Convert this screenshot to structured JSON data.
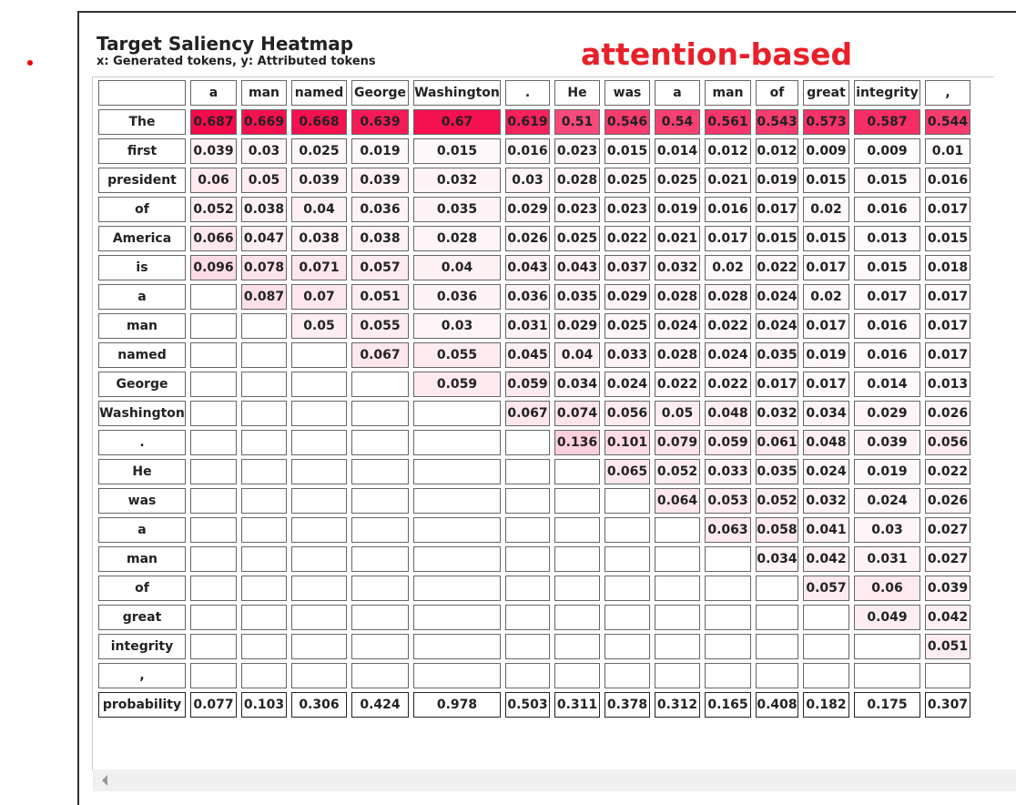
{
  "title": "Target Saliency Heatmap",
  "subtitle": "x: Generated tokens, y: Attributed tokens",
  "annotation": "attention-based",
  "color": "#f50a4b",
  "table": {
    "columns": [
      "a",
      "man",
      "named",
      "George",
      "Washington",
      ".",
      "He",
      "was",
      "a",
      "man",
      "of",
      "great",
      "integrity",
      ","
    ],
    "rows": [
      {
        "label": "The",
        "values": [
          0.687,
          0.669,
          0.668,
          0.639,
          0.67,
          0.619,
          0.51,
          0.546,
          0.54,
          0.561,
          0.543,
          0.573,
          0.587,
          0.544
        ]
      },
      {
        "label": "first",
        "values": [
          0.039,
          0.03,
          0.025,
          0.019,
          0.015,
          0.016,
          0.023,
          0.015,
          0.014,
          0.012,
          0.012,
          0.009,
          0.009,
          0.01
        ]
      },
      {
        "label": "president",
        "values": [
          0.06,
          0.05,
          0.039,
          0.039,
          0.032,
          0.03,
          0.028,
          0.025,
          0.025,
          0.021,
          0.019,
          0.015,
          0.015,
          0.016
        ]
      },
      {
        "label": "of",
        "values": [
          0.052,
          0.038,
          0.04,
          0.036,
          0.035,
          0.029,
          0.023,
          0.023,
          0.019,
          0.016,
          0.017,
          0.02,
          0.016,
          0.017
        ]
      },
      {
        "label": "America",
        "values": [
          0.066,
          0.047,
          0.038,
          0.038,
          0.028,
          0.026,
          0.025,
          0.022,
          0.021,
          0.017,
          0.015,
          0.015,
          0.013,
          0.015
        ]
      },
      {
        "label": "is",
        "values": [
          0.096,
          0.078,
          0.071,
          0.057,
          0.04,
          0.043,
          0.043,
          0.037,
          0.032,
          0.02,
          0.022,
          0.017,
          0.015,
          0.018
        ]
      },
      {
        "label": "a",
        "values": [
          null,
          0.087,
          0.07,
          0.051,
          0.036,
          0.036,
          0.035,
          0.029,
          0.028,
          0.028,
          0.024,
          0.02,
          0.017,
          0.017
        ]
      },
      {
        "label": "man",
        "values": [
          null,
          null,
          0.05,
          0.055,
          0.03,
          0.031,
          0.029,
          0.025,
          0.024,
          0.022,
          0.024,
          0.017,
          0.016,
          0.017
        ]
      },
      {
        "label": "named",
        "values": [
          null,
          null,
          null,
          0.067,
          0.055,
          0.045,
          0.04,
          0.033,
          0.028,
          0.024,
          0.035,
          0.019,
          0.016,
          0.017
        ]
      },
      {
        "label": "George",
        "values": [
          null,
          null,
          null,
          null,
          0.059,
          0.059,
          0.034,
          0.024,
          0.022,
          0.022,
          0.017,
          0.017,
          0.014,
          0.013
        ]
      },
      {
        "label": "Washington",
        "values": [
          null,
          null,
          null,
          null,
          null,
          0.067,
          0.074,
          0.056,
          0.05,
          0.048,
          0.032,
          0.034,
          0.029,
          0.026
        ]
      },
      {
        "label": ".",
        "values": [
          null,
          null,
          null,
          null,
          null,
          null,
          0.136,
          0.101,
          0.079,
          0.059,
          0.061,
          0.048,
          0.039,
          0.056
        ]
      },
      {
        "label": "He",
        "values": [
          null,
          null,
          null,
          null,
          null,
          null,
          null,
          0.065,
          0.052,
          0.033,
          0.035,
          0.024,
          0.019,
          0.022
        ]
      },
      {
        "label": "was",
        "values": [
          null,
          null,
          null,
          null,
          null,
          null,
          null,
          null,
          0.064,
          0.053,
          0.052,
          0.032,
          0.024,
          0.026
        ]
      },
      {
        "label": "a",
        "values": [
          null,
          null,
          null,
          null,
          null,
          null,
          null,
          null,
          null,
          0.063,
          0.058,
          0.041,
          0.03,
          0.027
        ]
      },
      {
        "label": "man",
        "values": [
          null,
          null,
          null,
          null,
          null,
          null,
          null,
          null,
          null,
          null,
          0.034,
          0.042,
          0.031,
          0.027
        ]
      },
      {
        "label": "of",
        "values": [
          null,
          null,
          null,
          null,
          null,
          null,
          null,
          null,
          null,
          null,
          null,
          0.057,
          0.06,
          0.039
        ]
      },
      {
        "label": "great",
        "values": [
          null,
          null,
          null,
          null,
          null,
          null,
          null,
          null,
          null,
          null,
          null,
          null,
          0.049,
          0.042
        ]
      },
      {
        "label": "integrity",
        "values": [
          null,
          null,
          null,
          null,
          null,
          null,
          null,
          null,
          null,
          null,
          null,
          null,
          null,
          0.051
        ]
      },
      {
        "label": ",",
        "values": [
          null,
          null,
          null,
          null,
          null,
          null,
          null,
          null,
          null,
          null,
          null,
          null,
          null,
          null
        ]
      }
    ],
    "probability": {
      "label": "probability",
      "values": [
        0.077,
        0.103,
        0.306,
        0.424,
        0.978,
        0.503,
        0.311,
        0.378,
        0.312,
        0.165,
        0.408,
        0.182,
        0.175,
        0.307
      ]
    }
  }
}
